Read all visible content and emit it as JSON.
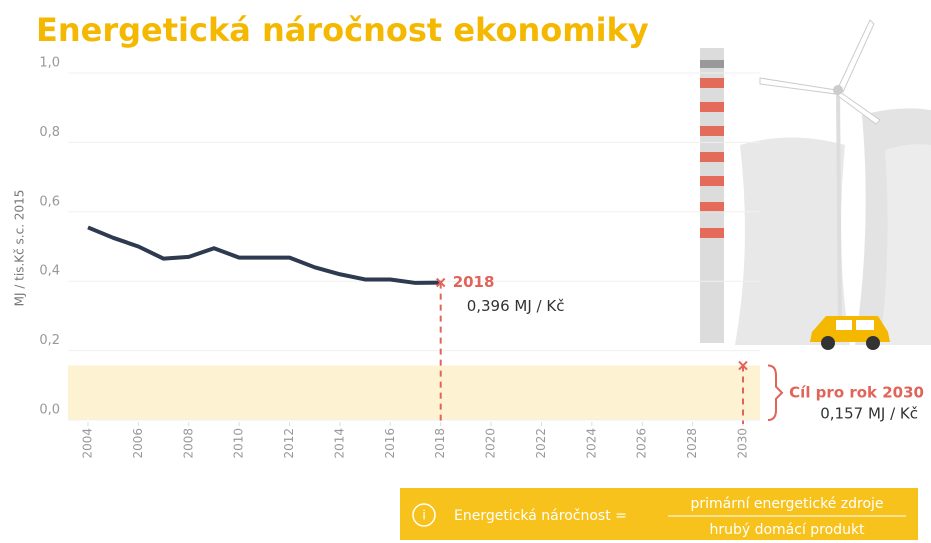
{
  "chart_data": {
    "type": "line",
    "title": "Energetická náročnost ekonomiky",
    "y_label": "MJ / tis.Kč s.c. 2015",
    "x": [
      2004,
      2005,
      2006,
      2007,
      2008,
      2009,
      2010,
      2011,
      2012,
      2013,
      2014,
      2015,
      2016,
      2017,
      2018
    ],
    "values": [
      0.555,
      0.525,
      0.5,
      0.465,
      0.47,
      0.495,
      0.468,
      0.468,
      0.468,
      0.44,
      0.42,
      0.405,
      0.405,
      0.395,
      0.396
    ],
    "color": "#2d3a4f",
    "xlim": [
      2004,
      2030
    ],
    "xticks": [
      2004,
      2006,
      2008,
      2010,
      2012,
      2014,
      2016,
      2018,
      2020,
      2022,
      2024,
      2026,
      2028,
      2030
    ],
    "ylim": [
      0,
      1
    ],
    "yticks": [
      {
        "value": 0,
        "label": "0,0"
      },
      {
        "value": 0.2,
        "label": "0,2"
      },
      {
        "value": 0.4,
        "label": "0,4"
      },
      {
        "value": 0.6,
        "label": "0,6"
      },
      {
        "value": 0.8,
        "label": "0,8"
      },
      {
        "value": 1,
        "label": "1,0"
      }
    ],
    "grid": true,
    "annotations": [
      {
        "x": 2018,
        "value": 0.396,
        "title": "2018",
        "label": "0,396 MJ / Kč"
      },
      {
        "x": 2030,
        "value": 0.157,
        "title": "Cíl pro rok 2030",
        "label": "0,157 MJ / Kč"
      }
    ],
    "formula": {
      "icon": "i",
      "lhs": "Energetická náročnost =",
      "numerator": "primární energetické zdroje",
      "denominator": "hrubý domácí produkt"
    }
  }
}
